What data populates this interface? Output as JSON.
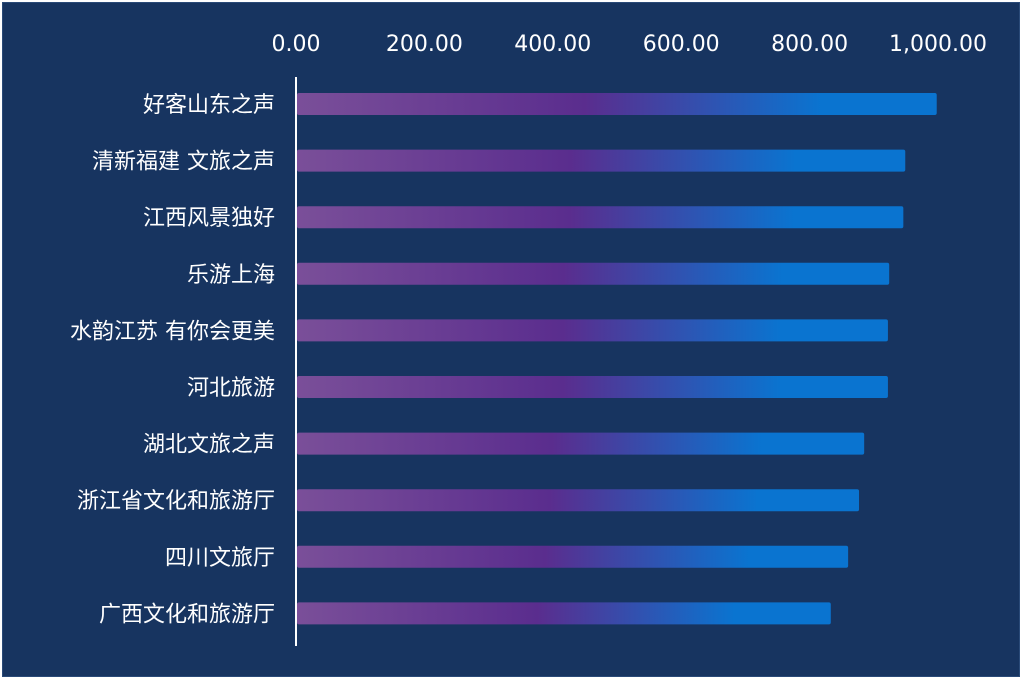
{
  "chart_data": {
    "type": "bar",
    "orientation": "horizontal",
    "title": "",
    "xlabel": "",
    "ylabel": "",
    "xlim": [
      0,
      1000
    ],
    "x_ticks": [
      "0.00",
      "200.00",
      "400.00",
      "600.00",
      "800.00",
      "1,000.00"
    ],
    "x_tick_values": [
      0,
      200,
      400,
      600,
      800,
      1000
    ],
    "x_axis_position": "top",
    "grid": false,
    "legend": "none",
    "categories": [
      "好客山东之声",
      "清新福建 文旅之声",
      "江西风景独好",
      "乐游上海",
      "水韵江苏 有你会更美",
      "河北旅游",
      "湖北文旅之声",
      "浙江省文化和旅游厅",
      "四川文旅厅",
      "广西文化和旅游厅"
    ],
    "values": [
      998,
      949,
      946,
      924,
      922,
      922,
      885,
      877,
      860,
      833
    ]
  },
  "colors": {
    "background": "#173460",
    "bar_start": "#7a4f99",
    "bar_mid": "#5a2d8e",
    "bar_end": "#0a74d0",
    "text": "#ffffff",
    "axis": "#ffffff"
  }
}
